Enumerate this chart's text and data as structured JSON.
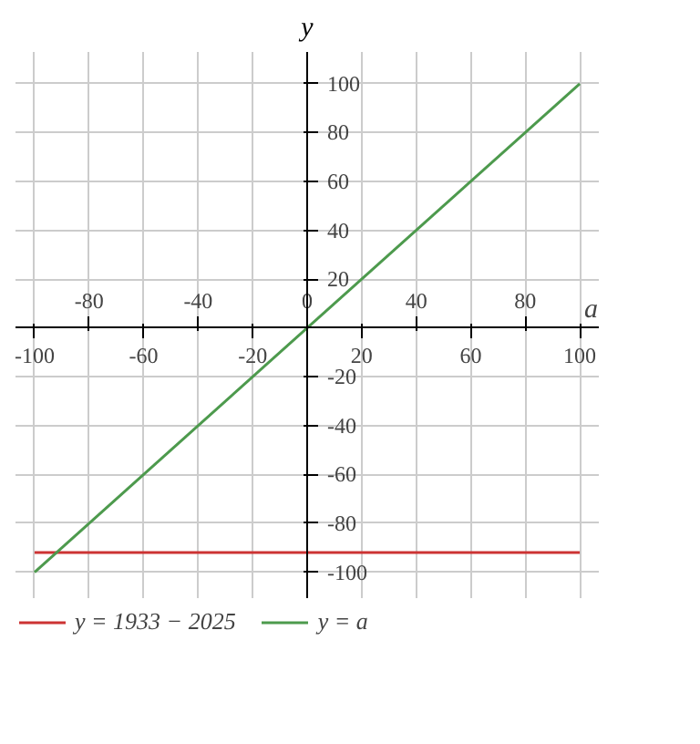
{
  "chart_data": {
    "type": "line",
    "xlabel": "a",
    "ylabel": "y",
    "xlim": [
      -107,
      107
    ],
    "ylim": [
      -111,
      113
    ],
    "x2lim": [
      -107,
      107
    ],
    "xticks": [
      -100,
      -60,
      -20,
      20,
      60,
      100
    ],
    "x2ticks": [
      -80,
      -40,
      0,
      40,
      80
    ],
    "yticks": [
      -100,
      -80,
      -60,
      -40,
      -20,
      20,
      40,
      60,
      80,
      100
    ],
    "x": [
      -100,
      100
    ],
    "grid": true,
    "legend": "bottom",
    "marker": "none",
    "line_style": "solid",
    "series": [
      {
        "name": "y = 1933 − 2025",
        "color": "#cc3333",
        "values": [
          -92,
          -92
        ]
      },
      {
        "name": "y = a",
        "color": "#4d9a4d",
        "values": [
          -100,
          100
        ]
      }
    ]
  }
}
